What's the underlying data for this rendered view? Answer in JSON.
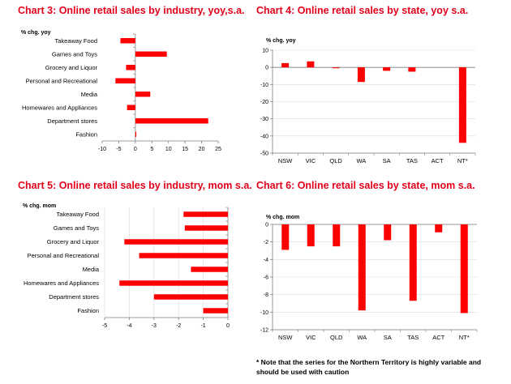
{
  "colors": {
    "bar": "#ff0000",
    "title": "#e2001a",
    "axis": "#7f7f7f",
    "grid": "#d9d9d9"
  },
  "footnote": "* Note that the series for the Northern Territory is highly variable and should be used with caution",
  "chart_data": [
    {
      "id": "chart3",
      "type": "bar",
      "orientation": "horizontal",
      "title": "Chart 3: Online retail sales by industry, yoy,s.a.",
      "ylabel": "% chg. yoy",
      "categories": [
        "Takeaway Food",
        "Games and Toys",
        "Grocery and Liquor",
        "Personal and Recreational",
        "Media",
        "Homewares and Appliances",
        "Department stores",
        "Fashion"
      ],
      "values": [
        -4.5,
        9.5,
        -2.8,
        -6,
        4.5,
        -2.5,
        22,
        0.3
      ],
      "xlim": [
        -10,
        25
      ],
      "ticks": [
        -10,
        -5,
        0,
        5,
        10,
        15,
        20,
        25
      ],
      "grid": false
    },
    {
      "id": "chart4",
      "type": "bar",
      "orientation": "vertical",
      "title": "Chart 4: Online retail sales by state, yoy s.a.",
      "ylabel": "% chg. yoy",
      "categories": [
        "NSW",
        "VIC",
        "QLD",
        "WA",
        "SA",
        "TAS",
        "ACT",
        "NT*"
      ],
      "values": [
        2.5,
        3.5,
        -0.5,
        -8.5,
        -2,
        -2.5,
        0,
        -44
      ],
      "ylim": [
        -50,
        10
      ],
      "ticks": [
        10,
        0,
        -10,
        -20,
        -30,
        -40,
        -50
      ],
      "grid": true
    },
    {
      "id": "chart5",
      "type": "bar",
      "orientation": "horizontal",
      "title": "Chart 5: Online retail sales by industry, mom s.a.",
      "ylabel": "% chg. mom",
      "categories": [
        "Takeaway Food",
        "Games and Toys",
        "Grocery and Liquor",
        "Personal and Recreational",
        "Media",
        "Homewares and Appliances",
        "Department stores",
        "Fashion"
      ],
      "values": [
        -1.8,
        -1.75,
        -4.2,
        -3.6,
        -1.5,
        -4.4,
        -3.0,
        -1.0
      ],
      "xlim": [
        -5,
        0
      ],
      "ticks": [
        -5,
        -4,
        -3,
        -2,
        -1,
        0
      ],
      "grid": true
    },
    {
      "id": "chart6",
      "type": "bar",
      "orientation": "vertical",
      "title": "Chart 6: Online retail sales by state, mom s.a.",
      "ylabel": "% chg. mom",
      "categories": [
        "NSW",
        "VIC",
        "QLD",
        "WA",
        "SA",
        "TAS",
        "ACT",
        "NT*"
      ],
      "values": [
        -2.9,
        -2.5,
        -2.5,
        -9.8,
        -1.8,
        -8.7,
        -0.9,
        -10.1
      ],
      "ylim": [
        -12,
        0
      ],
      "ticks": [
        0,
        -2,
        -4,
        -6,
        -8,
        -10,
        -12
      ],
      "grid": true
    }
  ]
}
